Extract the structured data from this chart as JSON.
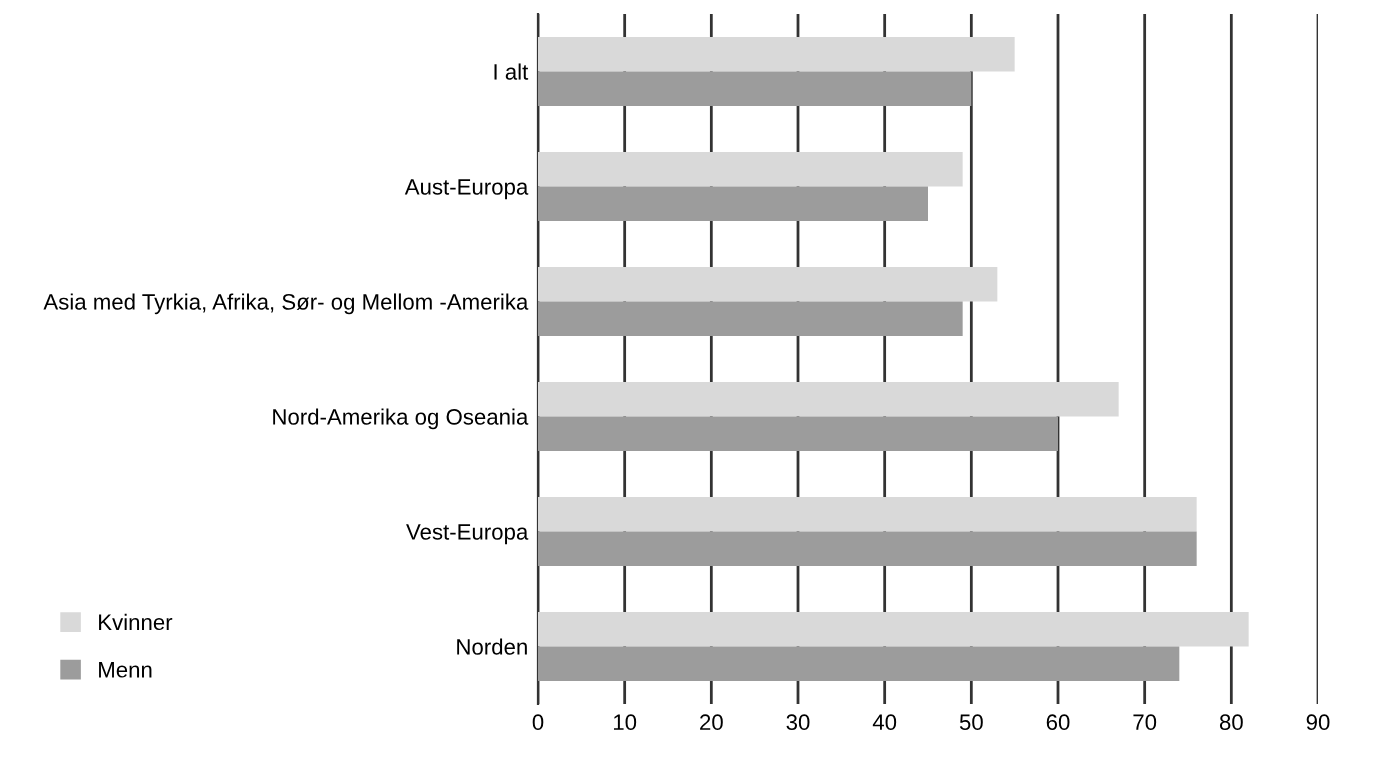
{
  "chart_data": {
    "type": "bar",
    "orientation": "horizontal",
    "categories": [
      "I alt",
      "Aust-Europa",
      "Asia med Tyrkia, Afrika, Sør- og Mellom -Amerika",
      "Nord-Amerika og Oseania",
      "Vest-Europa",
      "Norden"
    ],
    "series": [
      {
        "name": "Kvinner",
        "color": "#d9d9d9",
        "values": [
          55,
          49,
          53,
          67,
          76,
          82
        ]
      },
      {
        "name": "Menn",
        "color": "#9c9c9c",
        "values": [
          50,
          45,
          49,
          60,
          76,
          74
        ]
      }
    ],
    "xlim": [
      0,
      90
    ],
    "xticks": [
      0,
      10,
      20,
      30,
      40,
      50,
      60,
      70,
      80,
      90
    ],
    "grid": "x",
    "legend": "bottom left"
  }
}
